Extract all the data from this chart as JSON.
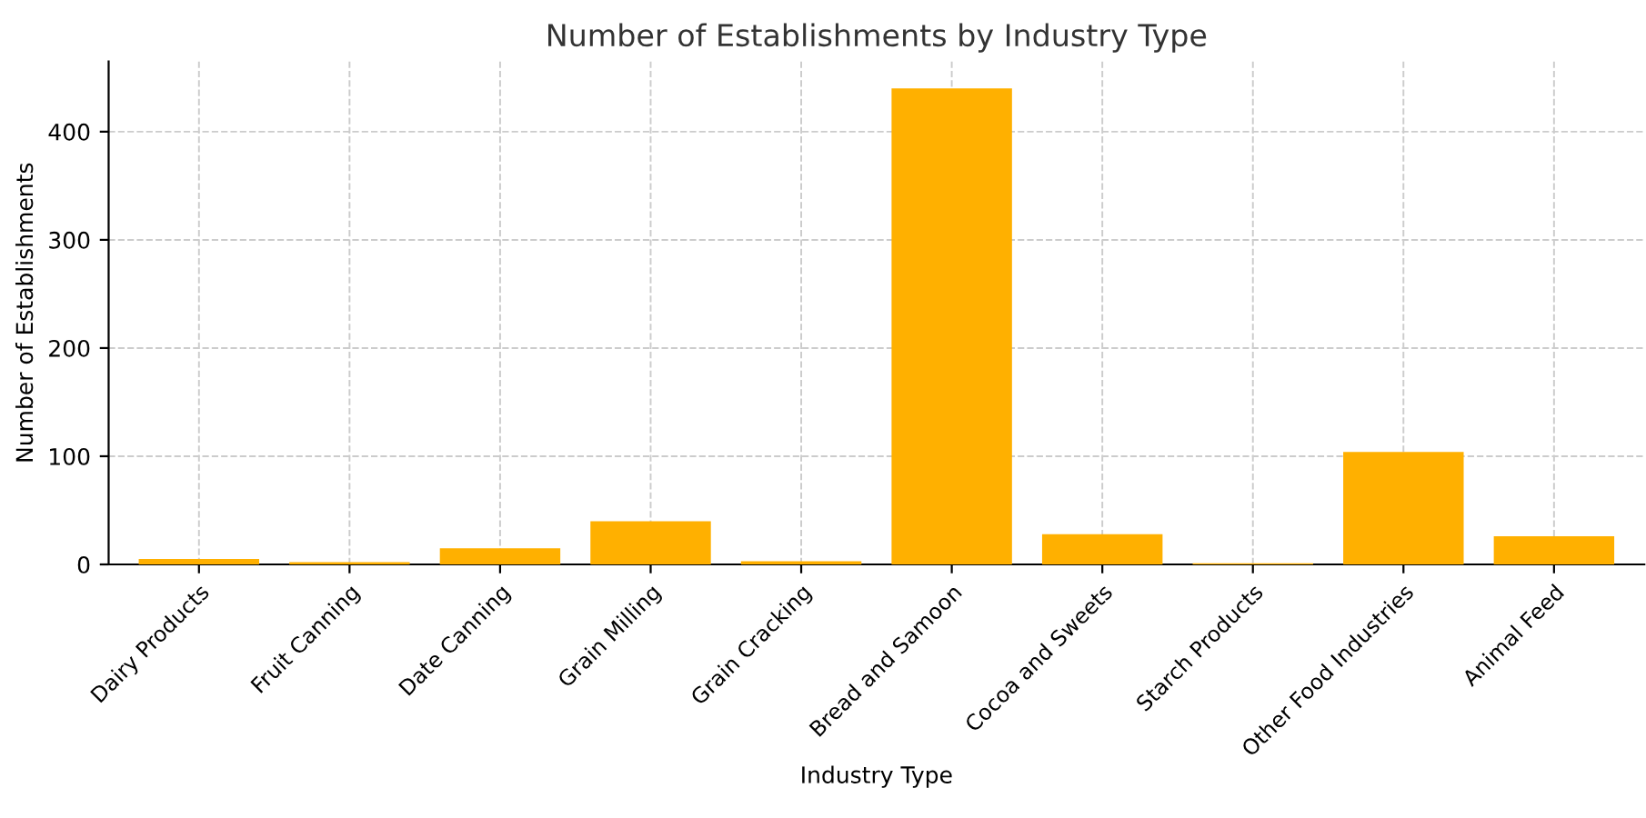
{
  "chart_data": {
    "type": "bar",
    "title": "Number of Establishments by Industry Type",
    "xlabel": "Industry Type",
    "ylabel": "Number of Establishments",
    "categories": [
      "Dairy Products",
      "Fruit Canning",
      "Date Canning",
      "Grain Milling",
      "Grain Cracking",
      "Bread and Samoon",
      "Cocoa and Sweets",
      "Starch Products",
      "Other Food Industries",
      "Animal Feed"
    ],
    "values": [
      5,
      2,
      15,
      40,
      3,
      440,
      28,
      1,
      104,
      26
    ],
    "color": "#ffb000",
    "ylim": [
      0,
      465
    ],
    "yticks": [
      0,
      100,
      200,
      300,
      400
    ],
    "grid": true
  }
}
